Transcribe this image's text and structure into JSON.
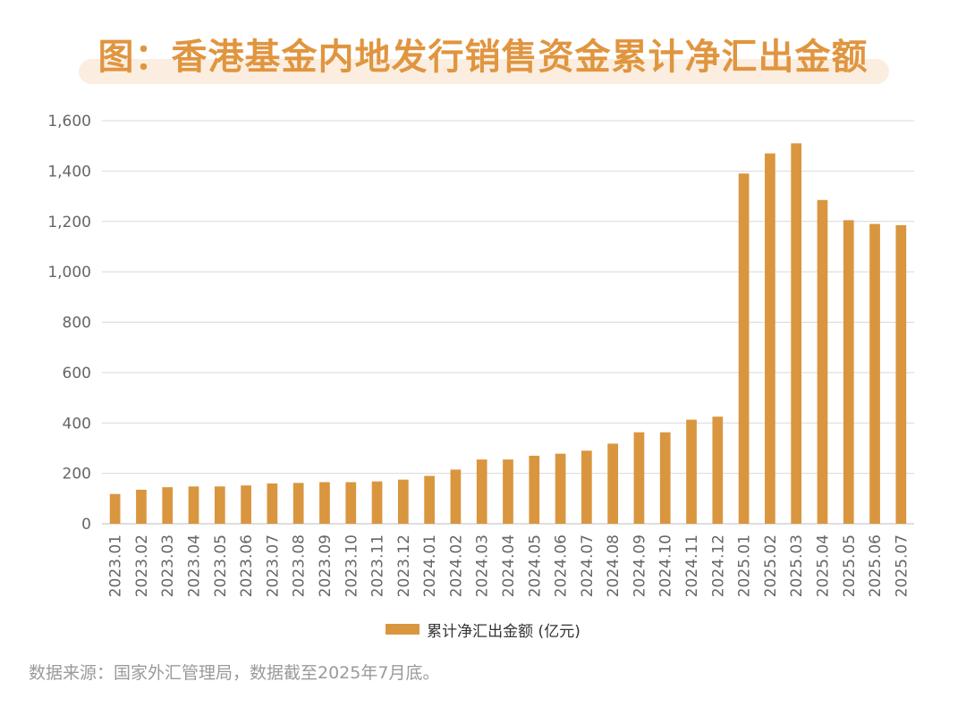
{
  "chart_data": {
    "type": "bar",
    "title": "图：香港基金内地发行销售资金累计净汇出金额",
    "categories": [
      "2023.01",
      "2023.02",
      "2023.03",
      "2023.04",
      "2023.05",
      "2023.06",
      "2023.07",
      "2023.08",
      "2023.09",
      "2023.10",
      "2023.11",
      "2023.12",
      "2024.01",
      "2024.02",
      "2024.03",
      "2024.04",
      "2024.05",
      "2024.06",
      "2024.07",
      "2024.08",
      "2024.09",
      "2024.10",
      "2024.11",
      "2024.12",
      "2025.01",
      "2025.02",
      "2025.03",
      "2025.04",
      "2025.05",
      "2025.06",
      "2025.07"
    ],
    "series": [
      {
        "name": "累计净汇出金额 (亿元)",
        "values": [
          118,
          135,
          145,
          148,
          148,
          152,
          160,
          162,
          165,
          165,
          168,
          175,
          190,
          215,
          255,
          255,
          270,
          278,
          290,
          318,
          363,
          363,
          413,
          425,
          1390,
          1470,
          1510,
          1285,
          1205,
          1190,
          1185
        ]
      }
    ],
    "yticks": [
      "0",
      "200",
      "400",
      "600",
      "800",
      "1,000",
      "1,200",
      "1,400",
      "1,600"
    ],
    "ylim": [
      0,
      1600
    ],
    "legend": "累计净汇出金额 (亿元)",
    "grid": true,
    "color": "#d9963f"
  },
  "source_note": "数据来源：国家外汇管理局，数据截至2025年7月底。"
}
